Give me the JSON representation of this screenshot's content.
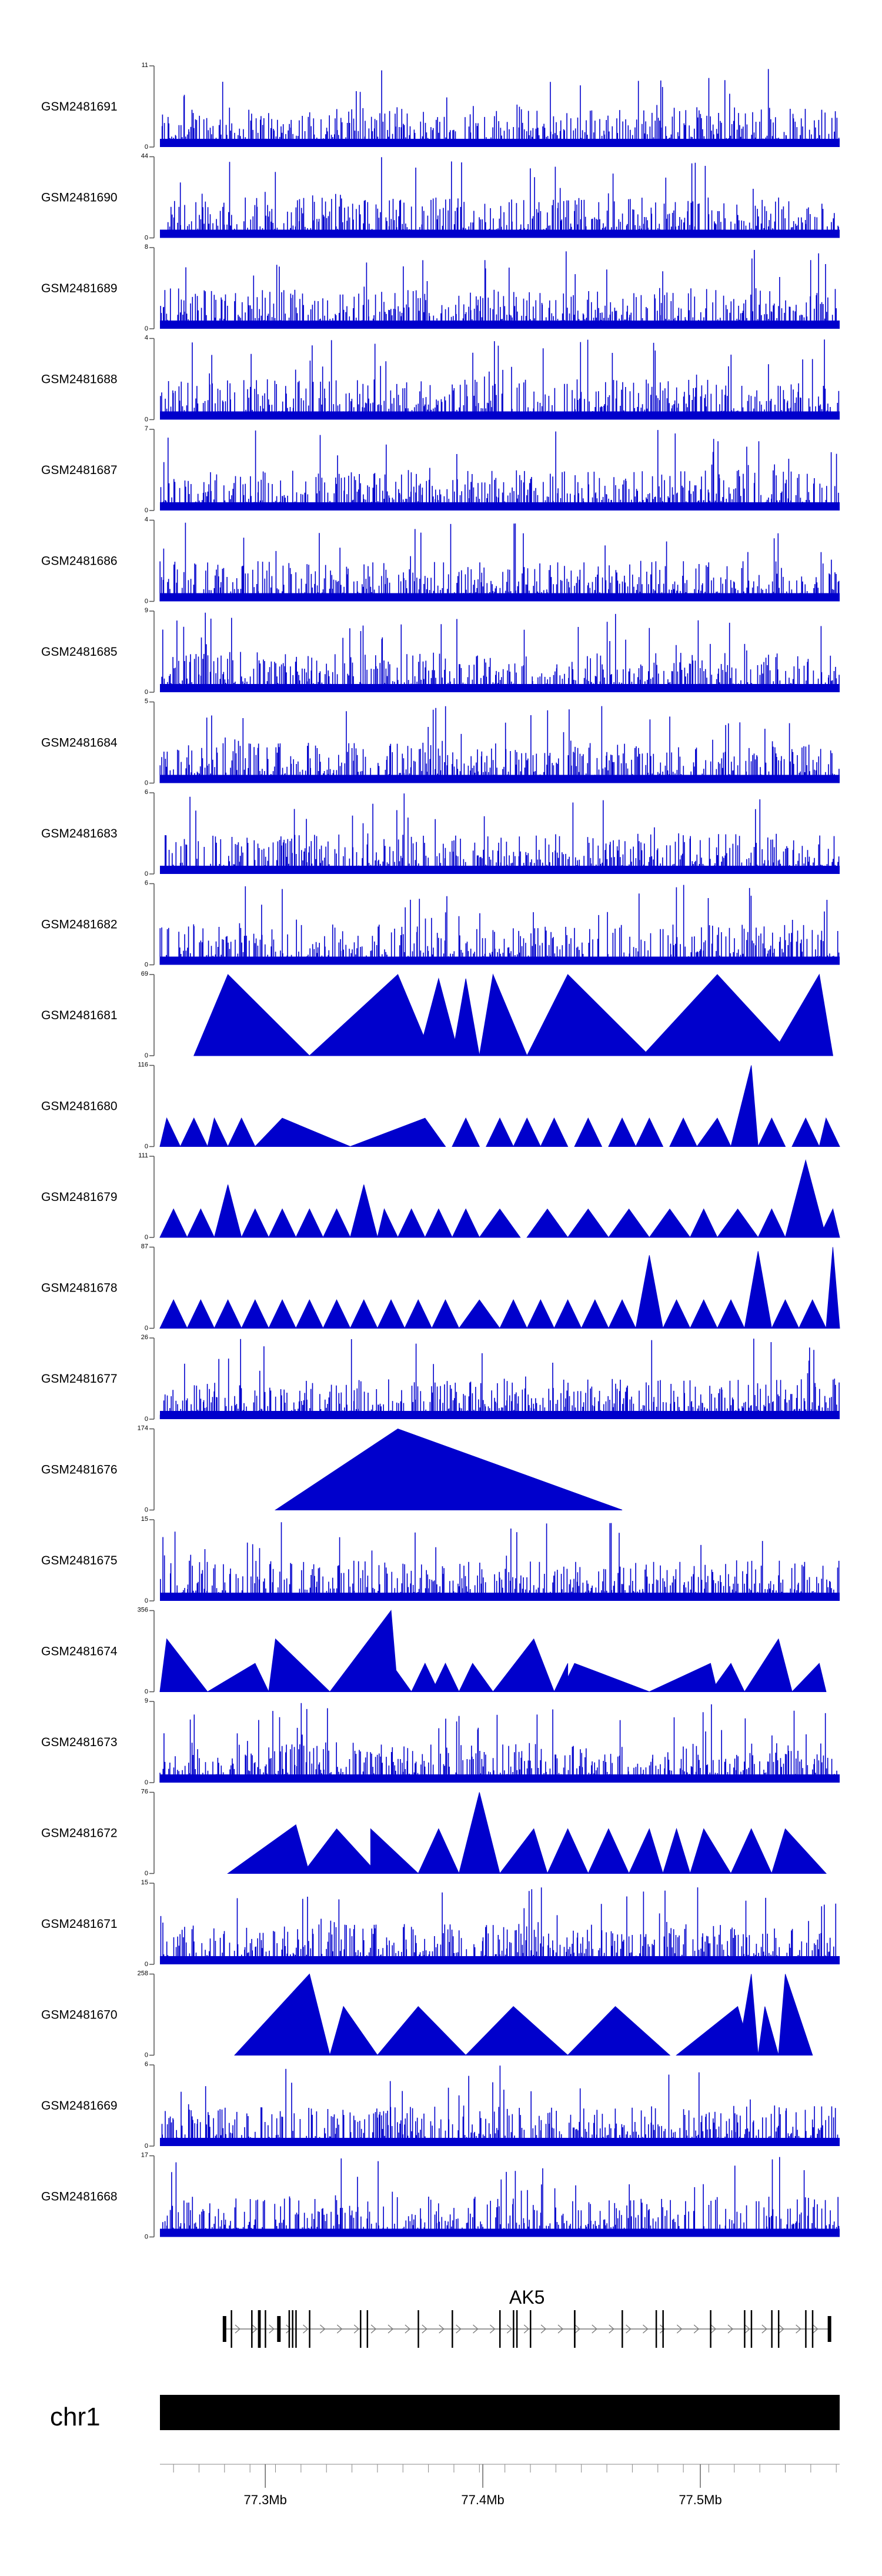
{
  "chart_data": {
    "type": "area",
    "description_style": "genome browser coverage tracks",
    "colors": {
      "track": "#0000CC",
      "gene": "#333333",
      "ideogram": "#000000"
    },
    "tracks": [
      {
        "name": "GSM2481691",
        "ymax": 11,
        "pattern": "bars"
      },
      {
        "name": "GSM2481690",
        "ymax": 44,
        "pattern": "bars"
      },
      {
        "name": "GSM2481689",
        "ymax": 8,
        "pattern": "bars"
      },
      {
        "name": "GSM2481688",
        "ymax": 4,
        "pattern": "bars"
      },
      {
        "name": "GSM2481687",
        "ymax": 7,
        "pattern": "bars"
      },
      {
        "name": "GSM2481686",
        "ymax": 4,
        "pattern": "bars"
      },
      {
        "name": "GSM2481685",
        "ymax": 9,
        "pattern": "bars"
      },
      {
        "name": "GSM2481684",
        "ymax": 5,
        "pattern": "bars"
      },
      {
        "name": "GSM2481683",
        "ymax": 6,
        "pattern": "bars"
      },
      {
        "name": "GSM2481682",
        "ymax": 6,
        "pattern": "bars"
      },
      {
        "name": "GSM2481681",
        "ymax": 69,
        "pattern": "triangles",
        "peaks": [
          [
            0.05,
            0.1,
            0.22
          ],
          [
            0.22,
            0.35,
            0.4
          ],
          [
            0.38,
            0.41,
            0.44
          ],
          [
            0.43,
            0.45,
            0.47
          ],
          [
            0.47,
            0.49,
            0.54
          ],
          [
            0.54,
            0.6,
            0.72
          ],
          [
            0.71,
            0.82,
            0.93
          ],
          [
            0.9,
            0.97,
            0.99
          ]
        ],
        "heights": [
          1,
          1,
          0.95,
          0.95,
          1,
          1,
          1,
          1
        ]
      },
      {
        "name": "GSM2481680",
        "ymax": 116,
        "pattern": "triangles",
        "peaks": [
          [
            0,
            0.01,
            0.03
          ],
          [
            0.03,
            0.05,
            0.07
          ],
          [
            0.07,
            0.08,
            0.1
          ],
          [
            0.1,
            0.12,
            0.14
          ],
          [
            0.14,
            0.18,
            0.28
          ],
          [
            0.28,
            0.39,
            0.42
          ],
          [
            0.43,
            0.45,
            0.47
          ],
          [
            0.48,
            0.5,
            0.52
          ],
          [
            0.52,
            0.54,
            0.56
          ],
          [
            0.56,
            0.58,
            0.6
          ],
          [
            0.61,
            0.63,
            0.65
          ],
          [
            0.66,
            0.68,
            0.7
          ],
          [
            0.7,
            0.72,
            0.74
          ],
          [
            0.75,
            0.77,
            0.79
          ],
          [
            0.79,
            0.82,
            0.84
          ],
          [
            0.84,
            0.87,
            0.88
          ],
          [
            0.88,
            0.9,
            0.92
          ],
          [
            0.93,
            0.95,
            0.97
          ],
          [
            0.97,
            0.98,
            1
          ]
        ],
        "heights": [
          0.35,
          0.35,
          0.35,
          0.35,
          0.35,
          0.35,
          0.35,
          0.35,
          0.35,
          0.35,
          0.35,
          0.35,
          0.35,
          0.35,
          0.35,
          1,
          0.35,
          0.35,
          0.35
        ]
      },
      {
        "name": "GSM2481679",
        "ymax": 111,
        "pattern": "triangles",
        "peaks": [
          [
            0,
            0.02,
            0.04
          ],
          [
            0.04,
            0.06,
            0.08
          ],
          [
            0.08,
            0.1,
            0.12
          ],
          [
            0.12,
            0.14,
            0.16
          ],
          [
            0.16,
            0.18,
            0.2
          ],
          [
            0.2,
            0.22,
            0.24
          ],
          [
            0.24,
            0.26,
            0.28
          ],
          [
            0.28,
            0.3,
            0.32
          ],
          [
            0.32,
            0.33,
            0.35
          ],
          [
            0.35,
            0.37,
            0.39
          ],
          [
            0.39,
            0.41,
            0.43
          ],
          [
            0.43,
            0.45,
            0.47
          ],
          [
            0.47,
            0.5,
            0.53
          ],
          [
            0.54,
            0.57,
            0.6
          ],
          [
            0.6,
            0.63,
            0.66
          ],
          [
            0.66,
            0.69,
            0.72
          ],
          [
            0.72,
            0.75,
            0.78
          ],
          [
            0.78,
            0.8,
            0.82
          ],
          [
            0.82,
            0.85,
            0.88
          ],
          [
            0.88,
            0.9,
            0.92
          ],
          [
            0.92,
            0.95,
            0.98
          ],
          [
            0.97,
            0.99,
            1
          ]
        ],
        "heights": [
          0.35,
          0.35,
          0.65,
          0.35,
          0.35,
          0.35,
          0.35,
          0.65,
          0.35,
          0.35,
          0.35,
          0.35,
          0.35,
          0.35,
          0.35,
          0.35,
          0.35,
          0.35,
          0.35,
          0.35,
          0.95,
          0.35
        ]
      },
      {
        "name": "GSM2481678",
        "ymax": 87,
        "pattern": "triangles",
        "peaks": [
          [
            0,
            0.02,
            0.04
          ],
          [
            0.04,
            0.06,
            0.08
          ],
          [
            0.08,
            0.1,
            0.12
          ],
          [
            0.12,
            0.14,
            0.16
          ],
          [
            0.16,
            0.18,
            0.2
          ],
          [
            0.2,
            0.22,
            0.24
          ],
          [
            0.24,
            0.26,
            0.28
          ],
          [
            0.28,
            0.3,
            0.32
          ],
          [
            0.32,
            0.34,
            0.36
          ],
          [
            0.36,
            0.38,
            0.4
          ],
          [
            0.4,
            0.42,
            0.44
          ],
          [
            0.44,
            0.47,
            0.5
          ],
          [
            0.5,
            0.52,
            0.54
          ],
          [
            0.54,
            0.56,
            0.58
          ],
          [
            0.58,
            0.6,
            0.62
          ],
          [
            0.62,
            0.64,
            0.66
          ],
          [
            0.66,
            0.68,
            0.7
          ],
          [
            0.7,
            0.72,
            0.74
          ],
          [
            0.74,
            0.76,
            0.78
          ],
          [
            0.78,
            0.8,
            0.82
          ],
          [
            0.82,
            0.84,
            0.86
          ],
          [
            0.86,
            0.88,
            0.9
          ],
          [
            0.9,
            0.92,
            0.94
          ],
          [
            0.94,
            0.96,
            0.98
          ],
          [
            0.98,
            0.99,
            1
          ]
        ],
        "heights": [
          0.35,
          0.35,
          0.35,
          0.35,
          0.35,
          0.35,
          0.35,
          0.35,
          0.35,
          0.35,
          0.35,
          0.35,
          0.35,
          0.35,
          0.35,
          0.35,
          0.35,
          0.9,
          0.35,
          0.35,
          0.35,
          0.95,
          0.35,
          0.35,
          1
        ]
      },
      {
        "name": "GSM2481677",
        "ymax": 26,
        "pattern": "bars"
      },
      {
        "name": "GSM2481676",
        "ymax": 174,
        "pattern": "triangles",
        "peaks": [
          [
            0.17,
            0.35,
            0.68
          ]
        ],
        "heights": [
          1
        ]
      },
      {
        "name": "GSM2481675",
        "ymax": 15,
        "pattern": "bars"
      },
      {
        "name": "GSM2481674",
        "ymax": 356,
        "pattern": "triangles",
        "peaks": [
          [
            0,
            0.01,
            0.07
          ],
          [
            0.07,
            0.14,
            0.16
          ],
          [
            0.16,
            0.17,
            0.25
          ],
          [
            0.25,
            0.34,
            0.35
          ],
          [
            0.33,
            0.34,
            0.37
          ],
          [
            0.37,
            0.39,
            0.41
          ],
          [
            0.4,
            0.42,
            0.44
          ],
          [
            0.44,
            0.46,
            0.49
          ],
          [
            0.49,
            0.55,
            0.58
          ],
          [
            0.58,
            0.6,
            0.6
          ],
          [
            0.59,
            0.61,
            0.72
          ],
          [
            0.72,
            0.81,
            0.82
          ],
          [
            0.81,
            0.84,
            0.86
          ],
          [
            0.86,
            0.91,
            0.93
          ],
          [
            0.93,
            0.97,
            0.98
          ]
        ],
        "heights": [
          0.65,
          0.35,
          0.65,
          1,
          0.35,
          0.35,
          0.35,
          0.35,
          0.65,
          0.35,
          0.35,
          0.35,
          0.35,
          0.65,
          0.35
        ]
      },
      {
        "name": "GSM2481673",
        "ymax": 9,
        "pattern": "bars"
      },
      {
        "name": "GSM2481672",
        "ymax": 76,
        "pattern": "triangles",
        "peaks": [
          [
            0.1,
            0.2,
            0.22
          ],
          [
            0.21,
            0.26,
            0.32
          ],
          [
            0.31,
            0.31,
            0.38
          ],
          [
            0.38,
            0.41,
            0.44
          ],
          [
            0.44,
            0.47,
            0.5
          ],
          [
            0.5,
            0.55,
            0.57
          ],
          [
            0.57,
            0.6,
            0.63
          ],
          [
            0.63,
            0.66,
            0.69
          ],
          [
            0.69,
            0.72,
            0.74
          ],
          [
            0.74,
            0.76,
            0.78
          ],
          [
            0.78,
            0.8,
            0.84
          ],
          [
            0.84,
            0.87,
            0.9
          ],
          [
            0.9,
            0.92,
            0.98
          ]
        ],
        "heights": [
          0.6,
          0.55,
          0.55,
          0.55,
          1,
          0.55,
          0.55,
          0.55,
          0.55,
          0.55,
          0.55,
          0.55,
          0.55
        ]
      },
      {
        "name": "GSM2481671",
        "ymax": 15,
        "pattern": "bars"
      },
      {
        "name": "GSM2481670",
        "ymax": 258,
        "pattern": "triangles",
        "peaks": [
          [
            0.11,
            0.22,
            0.25
          ],
          [
            0.25,
            0.27,
            0.32
          ],
          [
            0.32,
            0.38,
            0.45
          ],
          [
            0.45,
            0.52,
            0.6
          ],
          [
            0.6,
            0.67,
            0.75
          ],
          [
            0.76,
            0.85,
            0.87
          ],
          [
            0.85,
            0.87,
            0.88
          ],
          [
            0.88,
            0.89,
            0.91
          ],
          [
            0.91,
            0.92,
            0.96
          ]
        ],
        "heights": [
          1,
          0.6,
          0.6,
          0.6,
          0.6,
          0.6,
          1,
          0.6,
          1
        ]
      },
      {
        "name": "GSM2481669",
        "ymax": 6,
        "pattern": "bars"
      },
      {
        "name": "GSM2481668",
        "ymax": 17,
        "pattern": "bars"
      }
    ],
    "gene": {
      "label": "AK5",
      "start_frac": 0.095,
      "end_frac": 0.985,
      "exons": [
        0.095,
        0.105,
        0.135,
        0.145,
        0.147,
        0.155,
        0.175,
        0.19,
        0.195,
        0.2,
        0.22,
        0.295,
        0.305,
        0.38,
        0.43,
        0.5,
        0.52,
        0.525,
        0.545,
        0.61,
        0.61,
        0.68,
        0.73,
        0.74,
        0.81,
        0.86,
        0.87,
        0.9,
        0.91,
        0.95,
        0.96,
        0.985
      ]
    },
    "chromosome": {
      "label": "chr1"
    },
    "axis": {
      "ticks": [
        "77.3Mb",
        "77.4Mb",
        "77.5Mb"
      ],
      "tick_fracs": [
        0.155,
        0.475,
        0.795
      ]
    }
  }
}
